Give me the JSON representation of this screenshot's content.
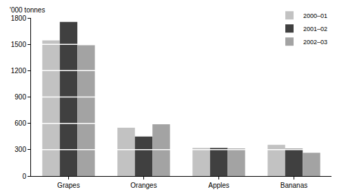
{
  "chart_data": {
    "type": "bar",
    "y_label": "'000 tonnes",
    "categories": [
      "Grapes",
      "Oranges",
      "Apples",
      "Bananas"
    ],
    "series": [
      {
        "name": "2000–01",
        "color": "#c2c2c2",
        "values": [
          1545,
          550,
          320,
          355
        ]
      },
      {
        "name": "2001–02",
        "color": "#404040",
        "values": [
          1755,
          450,
          320,
          310
        ]
      },
      {
        "name": "2002–03",
        "color": "#a3a3a3",
        "values": [
          1490,
          590,
          315,
          265
        ]
      }
    ],
    "ylim": [
      0,
      1800
    ],
    "yticks": [
      0,
      300,
      600,
      900,
      1200,
      1500,
      1800
    ],
    "grid": true,
    "legend": "top right"
  }
}
